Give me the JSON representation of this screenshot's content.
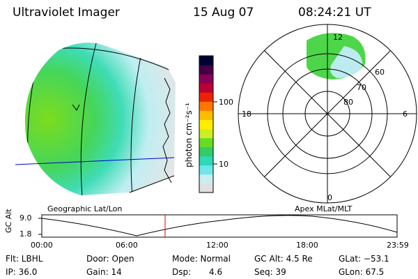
{
  "header": {
    "instrument": "Ultraviolet Imager",
    "date": "15 Aug 07",
    "time": "08:24:21 UT"
  },
  "colorbar": {
    "unit": "photon cm⁻²s⁻¹",
    "ticks": [
      {
        "label": "100",
        "value": 100
      },
      {
        "label": "10",
        "value": 10
      }
    ],
    "colors": [
      "#e0e0e0",
      "#c8eef0",
      "#70e6ec",
      "#2fd8b8",
      "#33cc66",
      "#66dd22",
      "#ccee22",
      "#ffee00",
      "#ffbb00",
      "#ff7700",
      "#ee2200",
      "#bb0033",
      "#880055",
      "#440044",
      "#000033"
    ]
  },
  "polar": {
    "mlt_labels": {
      "top": "12",
      "left": "18",
      "right": "6",
      "bottom": "0"
    },
    "lat_labels": [
      "60",
      "70",
      "80"
    ]
  },
  "map_labels": {
    "geographic": "Geographic Lat/Lon",
    "apex": "Apex MLat/MLT"
  },
  "altitude_plot": {
    "ylabel": "GC Alt",
    "yticks": [
      "9.0",
      "1.8"
    ],
    "xticks": [
      "00:00",
      "06:00",
      "12:00",
      "18:00",
      "23:59"
    ],
    "current_time": "08:24:21"
  },
  "info": {
    "filter": "Flt: LBHL",
    "door": "Door: Open",
    "mode": "Mode: Normal",
    "gc_alt": "GC Alt: 4.5 Re",
    "glat": "GLat: −53.1",
    "ip": "IP: 36.0",
    "gain": "Gain: 14",
    "dsp_label": "Dsp:",
    "dsp_value": "4.6",
    "seq": "Seq: 39",
    "glon": "GLon: 67.5"
  }
}
